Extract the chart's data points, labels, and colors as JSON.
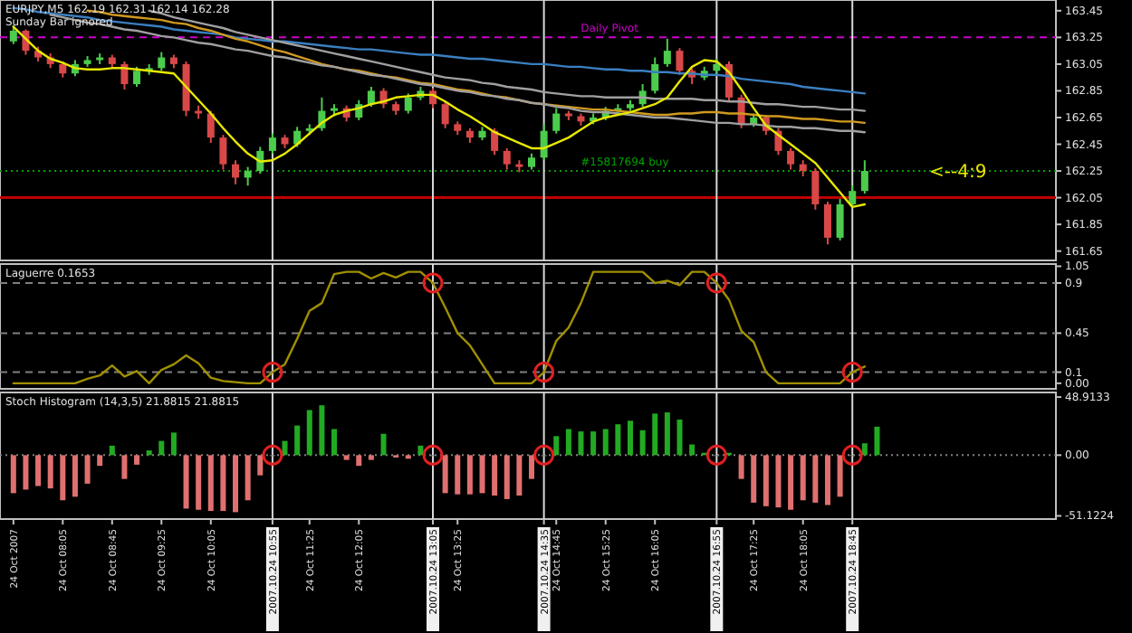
{
  "chart_data": [
    {
      "type": "candlestick",
      "title": "EURJPY,M5  162.19 162.31 162.14 162.28",
      "subtitle": "Sunday Bar ignored",
      "tick_labels": "y",
      "ylim": [
        161.58,
        163.53
      ],
      "yticks": [
        163.45,
        163.25,
        163.05,
        162.85,
        162.65,
        162.45,
        162.25,
        162.05,
        161.85,
        161.65
      ],
      "categories": [
        "24 Oct 2007",
        null,
        null,
        null,
        "24 Oct 08:05",
        null,
        null,
        null,
        "24 Oct 08:45",
        null,
        null,
        null,
        "24 Oct 09:25",
        null,
        null,
        null,
        "24 Oct 10:05",
        null,
        null,
        null,
        null,
        "2007.10.24 10:55",
        null,
        null,
        "24 Oct 11:25",
        null,
        null,
        null,
        "24 Oct 12:05",
        null,
        null,
        null,
        null,
        null,
        "2007.10.24 13:05",
        null,
        "24 Oct 13:25",
        null,
        null,
        null,
        null,
        null,
        null,
        "2007.10.24 14:35",
        "24 Oct 14:45",
        null,
        null,
        null,
        "24 Oct 15:25",
        null,
        null,
        null,
        "24 Oct 16:05",
        null,
        null,
        null,
        null,
        "2007.10.24 16:55",
        null,
        null,
        "24 Oct 17:25",
        null,
        null,
        null,
        "24 Oct 18:05",
        null,
        null,
        null,
        "2007.10.24 18:45",
        null,
        null,
        null,
        null,
        null,
        null,
        null,
        null,
        null,
        null,
        null,
        null,
        null,
        null,
        null,
        null
      ],
      "series": [
        {
          "ohlc": [
            [
              163.22,
              163.34,
              163.2,
              163.3
            ],
            [
              163.3,
              163.31,
              163.12,
              163.15
            ],
            [
              163.15,
              163.18,
              163.07,
              163.1
            ],
            [
              163.1,
              163.13,
              163.02,
              163.05
            ],
            [
              163.05,
              163.07,
              162.95,
              162.98
            ],
            [
              162.98,
              163.08,
              162.96,
              163.05
            ],
            [
              163.05,
              163.11,
              163.03,
              163.08
            ],
            [
              163.08,
              163.13,
              163.05,
              163.1
            ],
            [
              163.1,
              163.12,
              163.02,
              163.05
            ],
            [
              163.05,
              163.07,
              162.86,
              162.9
            ],
            [
              162.9,
              163.03,
              162.88,
              163.0
            ],
            [
              163.0,
              163.05,
              162.97,
              163.02
            ],
            [
              163.02,
              163.14,
              163.0,
              163.1
            ],
            [
              163.1,
              163.12,
              163.02,
              163.05
            ],
            [
              163.05,
              163.07,
              162.66,
              162.7
            ],
            [
              162.7,
              162.74,
              162.64,
              162.68
            ],
            [
              162.68,
              162.7,
              162.46,
              162.5
            ],
            [
              162.5,
              162.52,
              162.26,
              162.3
            ],
            [
              162.3,
              162.33,
              162.15,
              162.2
            ],
            [
              162.2,
              162.28,
              162.14,
              162.25
            ],
            [
              162.25,
              162.43,
              162.23,
              162.4
            ],
            [
              162.4,
              162.53,
              162.38,
              162.5
            ],
            [
              162.5,
              162.52,
              162.42,
              162.45
            ],
            [
              162.45,
              162.58,
              162.43,
              162.55
            ],
            [
              162.55,
              162.6,
              162.52,
              162.57
            ],
            [
              162.57,
              162.8,
              162.55,
              162.7
            ],
            [
              162.7,
              162.75,
              162.66,
              162.72
            ],
            [
              162.72,
              162.74,
              162.62,
              162.65
            ],
            [
              162.65,
              162.78,
              162.63,
              162.75
            ],
            [
              162.75,
              162.88,
              162.73,
              162.85
            ],
            [
              162.85,
              162.87,
              162.72,
              162.75
            ],
            [
              162.75,
              162.77,
              162.67,
              162.7
            ],
            [
              162.7,
              162.83,
              162.68,
              162.8
            ],
            [
              162.8,
              162.88,
              162.78,
              162.85
            ],
            [
              162.85,
              162.87,
              162.72,
              162.75
            ],
            [
              162.75,
              162.77,
              162.57,
              162.6
            ],
            [
              162.6,
              162.62,
              162.52,
              162.55
            ],
            [
              162.55,
              162.57,
              162.46,
              162.5
            ],
            [
              162.5,
              162.58,
              162.48,
              162.55
            ],
            [
              162.55,
              162.57,
              162.37,
              162.4
            ],
            [
              162.4,
              162.42,
              162.26,
              162.3
            ],
            [
              162.3,
              162.33,
              162.24,
              162.28
            ],
            [
              162.28,
              162.38,
              162.26,
              162.35
            ],
            [
              162.35,
              162.6,
              162.33,
              162.55
            ],
            [
              162.55,
              162.72,
              162.53,
              162.68
            ],
            [
              162.68,
              162.7,
              162.63,
              162.66
            ],
            [
              162.66,
              162.68,
              162.59,
              162.62
            ],
            [
              162.62,
              162.68,
              162.6,
              162.65
            ],
            [
              162.65,
              162.73,
              162.63,
              162.7
            ],
            [
              162.7,
              162.75,
              162.68,
              162.72
            ],
            [
              162.72,
              162.78,
              162.7,
              162.75
            ],
            [
              162.75,
              162.9,
              162.73,
              162.85
            ],
            [
              162.85,
              163.1,
              162.83,
              163.05
            ],
            [
              163.05,
              163.24,
              163.03,
              163.15
            ],
            [
              163.15,
              163.17,
              162.97,
              163.0
            ],
            [
              163.0,
              163.02,
              162.9,
              162.95
            ],
            [
              162.95,
              163.03,
              162.93,
              163.0
            ],
            [
              163.0,
              163.09,
              162.98,
              163.05
            ],
            [
              163.05,
              163.07,
              162.77,
              162.8
            ],
            [
              162.8,
              162.82,
              162.57,
              162.6
            ],
            [
              162.6,
              162.68,
              162.58,
              162.65
            ],
            [
              162.65,
              162.67,
              162.52,
              162.55
            ],
            [
              162.55,
              162.57,
              162.37,
              162.4
            ],
            [
              162.4,
              162.42,
              162.26,
              162.3
            ],
            [
              162.3,
              162.33,
              162.21,
              162.25
            ],
            [
              162.25,
              162.27,
              161.96,
              162.0
            ],
            [
              162.0,
              162.02,
              161.7,
              161.75
            ],
            [
              161.75,
              162.04,
              161.73,
              162.0
            ],
            [
              162.0,
              162.14,
              161.98,
              162.1
            ],
            [
              162.1,
              162.33,
              162.08,
              162.25
            ],
            null,
            null,
            null,
            null,
            null,
            null,
            null,
            null,
            null,
            null,
            null,
            null,
            null,
            null,
            null
          ],
          "colors": [
            "#4ccc4c",
            "#d84848",
            "#d84848",
            "#d84848",
            "#d84848",
            "#4ccc4c",
            "#4ccc4c",
            "#4ccc4c",
            "#d84848",
            "#d84848",
            "#4ccc4c",
            "#4ccc4c",
            "#4ccc4c",
            "#d84848",
            "#d84848",
            "#d84848",
            "#d84848",
            "#d84848",
            "#d84848",
            "#4ccc4c",
            "#4ccc4c",
            "#4ccc4c",
            "#d84848",
            "#4ccc4c",
            "#4ccc4c",
            "#4ccc4c",
            "#4ccc4c",
            "#d84848",
            "#4ccc4c",
            "#4ccc4c",
            "#d84848",
            "#d84848",
            "#4ccc4c",
            "#4ccc4c",
            "#d84848",
            "#d84848",
            "#d84848",
            "#d84848",
            "#4ccc4c",
            "#d84848",
            "#d84848",
            "#d84848",
            "#4ccc4c",
            "#4ccc4c",
            "#4ccc4c",
            "#d84848",
            "#d84848",
            "#4ccc4c",
            "#4ccc4c",
            "#4ccc4c",
            "#4ccc4c",
            "#4ccc4c",
            "#4ccc4c",
            "#4ccc4c",
            "#d84848",
            "#d84848",
            "#4ccc4c",
            "#4ccc4c",
            "#d84848",
            "#d84848",
            "#4ccc4c",
            "#d84848",
            "#d84848",
            "#d84848",
            "#d84848",
            "#d84848",
            "#d84848",
            "#4ccc4c",
            "#4ccc4c",
            "#4ccc4c",
            null,
            null,
            null,
            null,
            null,
            null,
            null,
            null,
            null,
            null,
            null,
            null,
            null,
            null,
            null
          ]
        },
        {
          "type": "line",
          "color": "#3a7fc0",
          "values": [
            163.47,
            163.46,
            163.44,
            163.43,
            163.42,
            163.41,
            163.4,
            163.38,
            163.37,
            163.36,
            163.35,
            163.34,
            163.33,
            163.31,
            163.3,
            163.29,
            163.28,
            163.27,
            163.25,
            163.24,
            163.23,
            163.22,
            163.22,
            163.21,
            163.2,
            163.19,
            163.18,
            163.17,
            163.16,
            163.16,
            163.15,
            163.14,
            163.13,
            163.12,
            163.12,
            163.11,
            163.1,
            163.09,
            163.09,
            163.08,
            163.07,
            163.06,
            163.05,
            163.05,
            163.04,
            163.03,
            163.03,
            163.02,
            163.01,
            163.01,
            163.0,
            163.0,
            162.99,
            162.99,
            162.98,
            162.98,
            162.97,
            162.97,
            162.96,
            162.94,
            162.93,
            162.92,
            162.91,
            162.9,
            162.88,
            162.87,
            162.86,
            162.85,
            162.84,
            162.83,
            null,
            null,
            null,
            null,
            null,
            null,
            null,
            null,
            null,
            null,
            null,
            null,
            null,
            null,
            null
          ]
        },
        {
          "type": "line",
          "color": "#a0a0a0",
          "values": [
            null,
            null,
            null,
            null,
            null,
            null,
            null,
            null,
            null,
            null,
            null,
            163.45,
            163.43,
            163.4,
            163.38,
            163.36,
            163.34,
            163.32,
            163.29,
            163.27,
            163.25,
            163.23,
            163.21,
            163.19,
            163.17,
            163.15,
            163.13,
            163.11,
            163.09,
            163.07,
            163.05,
            163.03,
            163.01,
            162.99,
            162.97,
            162.95,
            162.94,
            162.93,
            162.91,
            162.9,
            162.88,
            162.87,
            162.86,
            162.84,
            162.83,
            162.82,
            162.81,
            162.81,
            162.8,
            162.8,
            162.8,
            162.8,
            162.79,
            162.79,
            162.79,
            162.79,
            162.78,
            162.78,
            162.77,
            162.77,
            162.76,
            162.75,
            162.75,
            162.74,
            162.73,
            162.73,
            162.72,
            162.71,
            162.71,
            162.7,
            null,
            null,
            null,
            null,
            null,
            null,
            null,
            null,
            null,
            null,
            null,
            null,
            null,
            null,
            null
          ]
        },
        {
          "type": "line",
          "color": "#d09a20",
          "values": [
            null,
            null,
            null,
            null,
            null,
            null,
            163.45,
            163.44,
            163.42,
            163.41,
            163.4,
            163.39,
            163.38,
            163.36,
            163.35,
            163.32,
            163.3,
            163.27,
            163.24,
            163.22,
            163.19,
            163.16,
            163.14,
            163.11,
            163.08,
            163.05,
            163.03,
            163.01,
            163.0,
            162.98,
            162.96,
            162.95,
            162.93,
            162.91,
            162.9,
            162.88,
            162.86,
            162.85,
            162.83,
            162.81,
            162.8,
            162.78,
            162.76,
            162.75,
            162.74,
            162.73,
            162.72,
            162.71,
            162.71,
            162.7,
            162.69,
            162.68,
            162.67,
            162.67,
            162.68,
            162.68,
            162.69,
            162.69,
            162.68,
            162.68,
            162.67,
            162.66,
            162.66,
            162.65,
            162.64,
            162.64,
            162.63,
            162.62,
            162.62,
            162.61,
            null,
            null,
            null,
            null,
            null,
            null,
            null,
            null,
            null,
            null,
            null,
            null,
            null,
            null,
            null
          ]
        },
        {
          "type": "line",
          "color": "#a0a0a0",
          "values": [
            null,
            null,
            null,
            163.42,
            163.4,
            163.38,
            163.36,
            163.35,
            163.33,
            163.31,
            163.3,
            163.28,
            163.26,
            163.25,
            163.23,
            163.21,
            163.2,
            163.18,
            163.16,
            163.15,
            163.13,
            163.11,
            163.1,
            163.08,
            163.06,
            163.04,
            163.03,
            163.01,
            162.99,
            162.97,
            162.96,
            162.94,
            162.92,
            162.9,
            162.89,
            162.87,
            162.85,
            162.84,
            162.82,
            162.81,
            162.79,
            162.78,
            162.76,
            162.75,
            162.73,
            162.72,
            162.7,
            162.69,
            162.69,
            162.68,
            162.67,
            162.66,
            162.65,
            162.65,
            162.64,
            162.63,
            162.62,
            162.61,
            162.61,
            162.6,
            162.6,
            162.59,
            162.58,
            162.58,
            162.57,
            162.57,
            162.56,
            162.55,
            162.55,
            162.54,
            null,
            null,
            null,
            null,
            null,
            null,
            null,
            null,
            null,
            null,
            null,
            null,
            null,
            null,
            null
          ]
        },
        {
          "type": "line",
          "color": "#e8e800",
          "values": [
            163.33,
            163.24,
            163.15,
            163.09,
            163.06,
            163.02,
            163.01,
            163.01,
            163.02,
            163.02,
            163.01,
            163.0,
            162.99,
            162.98,
            162.88,
            162.78,
            162.68,
            162.57,
            162.47,
            162.38,
            162.32,
            162.33,
            162.38,
            162.45,
            162.53,
            162.61,
            162.67,
            162.7,
            162.72,
            162.75,
            162.77,
            162.8,
            162.81,
            162.82,
            162.82,
            162.77,
            162.71,
            162.66,
            162.6,
            162.54,
            162.5,
            162.46,
            162.42,
            162.42,
            162.46,
            162.5,
            162.56,
            162.62,
            162.65,
            162.67,
            162.69,
            162.72,
            162.75,
            162.8,
            162.92,
            163.03,
            163.08,
            163.07,
            162.99,
            162.86,
            162.72,
            162.59,
            162.52,
            162.45,
            162.38,
            162.31,
            162.2,
            162.09,
            161.98,
            162.0,
            null,
            null,
            null,
            null,
            null,
            null,
            null,
            null,
            null,
            null,
            null,
            null,
            null,
            null,
            null
          ]
        }
      ],
      "ref_lines": [
        {
          "axis": "y",
          "value": 163.25,
          "label": "Daily Pivot",
          "color": "#cc00cc",
          "line_style": "dashed"
        },
        {
          "axis": "y",
          "value": 162.25,
          "label": "#15817694 buy",
          "color": "#00a000",
          "line_style": "dotted"
        },
        {
          "axis": "y",
          "value": 162.05,
          "color": "#c00000",
          "line_style": "solid"
        },
        {
          "axis": "x",
          "value": "2007.10.24 10:55",
          "color": "#d8d8d8"
        },
        {
          "axis": "x",
          "value": "2007.10.24 13:05",
          "color": "#d8d8d8"
        },
        {
          "axis": "x",
          "value": "2007.10.24 14:35",
          "color": "#d8d8d8"
        },
        {
          "axis": "x",
          "value": "2007.10.24 16:55",
          "color": "#d8d8d8"
        },
        {
          "axis": "x",
          "value": "2007.10.24 18:45",
          "color": "#d8d8d8"
        }
      ],
      "annotations": [
        {
          "text": "<--4:9",
          "y": 162.2
        }
      ]
    },
    {
      "type": "line",
      "title": "Laguerre 0.1653",
      "tick_labels": "y",
      "ylim": [
        -0.05,
        1.07
      ],
      "yticks": [
        1.05,
        0.9,
        0.45,
        0.1,
        {
          "value": 0,
          "label": "0.00"
        }
      ],
      "categories": [
        "24 Oct 2007",
        null,
        null,
        null,
        "24 Oct 08:05",
        null,
        null,
        null,
        "24 Oct 08:45",
        null,
        null,
        null,
        "24 Oct 09:25",
        null,
        null,
        null,
        "24 Oct 10:05",
        null,
        null,
        null,
        null,
        "2007.10.24 10:55",
        null,
        null,
        "24 Oct 11:25",
        null,
        null,
        null,
        "24 Oct 12:05",
        null,
        null,
        null,
        null,
        null,
        "2007.10.24 13:05",
        null,
        "24 Oct 13:25",
        null,
        null,
        null,
        null,
        null,
        null,
        "2007.10.24 14:35",
        "24 Oct 14:45",
        null,
        null,
        null,
        "24 Oct 15:25",
        null,
        null,
        null,
        "24 Oct 16:05",
        null,
        null,
        null,
        null,
        "2007.10.24 16:55",
        null,
        null,
        "24 Oct 17:25",
        null,
        null,
        null,
        "24 Oct 18:05",
        null,
        null,
        null,
        "2007.10.24 18:45",
        null,
        null,
        null,
        null,
        null,
        null,
        null,
        null,
        null,
        null,
        null,
        null,
        null,
        null,
        null,
        null
      ],
      "series": [
        {
          "color": "#a09000",
          "values": [
            0,
            0,
            0,
            0,
            0,
            0,
            0.04,
            0.07,
            0.16,
            0.06,
            0.11,
            0,
            0.12,
            0.17,
            0.25,
            0.18,
            0.05,
            0.02,
            0.01,
            0,
            0,
            0.1,
            0.17,
            0.4,
            0.65,
            0.72,
            0.98,
            1,
            1,
            0.94,
            0.99,
            0.95,
            1,
            1,
            0.9,
            0.68,
            0.45,
            0.34,
            0.17,
            0,
            0,
            0,
            0,
            0.1,
            0.38,
            0.5,
            0.72,
            1,
            1,
            1,
            1,
            1,
            0.9,
            0.92,
            0.88,
            1,
            1,
            0.9,
            0.75,
            0.47,
            0.37,
            0.1,
            0,
            0,
            0,
            0,
            0,
            0,
            0.1,
            0.15,
            null,
            null,
            null,
            null,
            null,
            null,
            null,
            null,
            null,
            null,
            null,
            null,
            null,
            null,
            null
          ]
        },
        {
          "type": "scatter",
          "marker": "circle",
          "color": "#e02020",
          "values": [
            null,
            null,
            null,
            null,
            null,
            null,
            null,
            null,
            null,
            null,
            null,
            null,
            null,
            null,
            null,
            null,
            null,
            null,
            null,
            null,
            null,
            0.1,
            null,
            null,
            null,
            null,
            null,
            null,
            null,
            null,
            null,
            null,
            null,
            null,
            0.9,
            null,
            null,
            null,
            null,
            null,
            null,
            null,
            null,
            0.1,
            null,
            null,
            null,
            null,
            null,
            null,
            null,
            null,
            null,
            null,
            null,
            null,
            null,
            0.9,
            null,
            null,
            null,
            null,
            null,
            null,
            null,
            null,
            null,
            null,
            0.1,
            null,
            null,
            null,
            null,
            null,
            null,
            null,
            null,
            null,
            null,
            null,
            null,
            null,
            null,
            null,
            null
          ]
        }
      ],
      "ref_lines": [
        {
          "axis": "y",
          "value": 0.9,
          "color": "#808080",
          "line_style": "dashed"
        },
        {
          "axis": "y",
          "value": 0.45,
          "color": "#808080",
          "line_style": "dashed"
        },
        {
          "axis": "y",
          "value": 0.1,
          "color": "#808080",
          "line_style": "dashed"
        },
        {
          "axis": "x",
          "value": "2007.10.24 10:55",
          "color": "#d8d8d8"
        },
        {
          "axis": "x",
          "value": "2007.10.24 13:05",
          "color": "#d8d8d8"
        },
        {
          "axis": "x",
          "value": "2007.10.24 14:35",
          "color": "#d8d8d8"
        },
        {
          "axis": "x",
          "value": "2007.10.24 16:55",
          "color": "#d8d8d8"
        },
        {
          "axis": "x",
          "value": "2007.10.24 18:45",
          "color": "#d8d8d8"
        }
      ]
    },
    {
      "type": "bar",
      "title": "Stoch Histogram (14,3,5) 21.8815 21.8815",
      "ylim": [
        -53.8,
        52.8
      ],
      "yticks": [
        {
          "value": 48.9133,
          "label": "48.9133"
        },
        {
          "value": 0,
          "label": "0.00"
        },
        {
          "value": -51.1224,
          "label": "-51.1224"
        }
      ],
      "categories": [
        "24 Oct 2007",
        null,
        null,
        null,
        "24 Oct 08:05",
        null,
        null,
        null,
        "24 Oct 08:45",
        null,
        null,
        null,
        "24 Oct 09:25",
        null,
        null,
        null,
        "24 Oct 10:05",
        null,
        null,
        null,
        null,
        "2007.10.24 10:55",
        null,
        null,
        "24 Oct 11:25",
        null,
        null,
        null,
        "24 Oct 12:05",
        null,
        null,
        null,
        null,
        null,
        "2007.10.24 13:05",
        null,
        "24 Oct 13:25",
        null,
        null,
        null,
        null,
        null,
        null,
        "2007.10.24 14:35",
        "24 Oct 14:45",
        null,
        null,
        null,
        "24 Oct 15:25",
        null,
        null,
        null,
        "24 Oct 16:05",
        null,
        null,
        null,
        null,
        "2007.10.24 16:55",
        null,
        null,
        "24 Oct 17:25",
        null,
        null,
        null,
        "24 Oct 18:05",
        null,
        null,
        null,
        "2007.10.24 18:45",
        null,
        null,
        null,
        null,
        null,
        null,
        null,
        null,
        null,
        null,
        null,
        null,
        null,
        null,
        null,
        null
      ],
      "series": [
        {
          "values": [
            -32,
            -29,
            -26,
            -28,
            -38,
            -35,
            -24,
            -9,
            8,
            -20,
            -8,
            4,
            12,
            19,
            -45,
            -46,
            -47,
            -47,
            -48,
            -38,
            -17,
            0,
            12,
            25,
            38,
            42,
            22,
            -4,
            -9,
            -4,
            18,
            -2,
            -3,
            8,
            0,
            -32,
            -33,
            -33,
            -32,
            -34,
            -37,
            -34,
            -20,
            0,
            16,
            22,
            20,
            20,
            22,
            26,
            29,
            21,
            35,
            36,
            30,
            9,
            2,
            0,
            2,
            -20,
            -40,
            -43,
            -44,
            -46,
            -38,
            -40,
            -42,
            -35,
            0,
            10,
            24,
            null,
            null,
            null,
            null,
            null,
            null,
            null,
            null,
            null,
            null,
            null,
            null,
            null,
            null
          ],
          "colors": [
            "#e07070",
            "#e07070",
            "#e07070",
            "#e07070",
            "#e07070",
            "#e07070",
            "#e07070",
            "#e07070",
            "#22aa22",
            "#e07070",
            "#e07070",
            "#22aa22",
            "#22aa22",
            "#22aa22",
            "#e07070",
            "#e07070",
            "#e07070",
            "#e07070",
            "#e07070",
            "#e07070",
            "#e07070",
            "#808080",
            "#22aa22",
            "#22aa22",
            "#22aa22",
            "#22aa22",
            "#22aa22",
            "#e07070",
            "#e07070",
            "#e07070",
            "#22aa22",
            "#e07070",
            "#e07070",
            "#22aa22",
            "#808080",
            "#e07070",
            "#e07070",
            "#e07070",
            "#e07070",
            "#e07070",
            "#e07070",
            "#e07070",
            "#e07070",
            "#808080",
            "#22aa22",
            "#22aa22",
            "#22aa22",
            "#22aa22",
            "#22aa22",
            "#22aa22",
            "#22aa22",
            "#22aa22",
            "#22aa22",
            "#22aa22",
            "#22aa22",
            "#22aa22",
            "#22aa22",
            "#808080",
            "#22aa22",
            "#e07070",
            "#e07070",
            "#e07070",
            "#e07070",
            "#e07070",
            "#e07070",
            "#e07070",
            "#e07070",
            "#e07070",
            "#808080",
            "#22aa22",
            "#22aa22",
            null,
            null,
            null,
            null,
            null,
            null,
            null,
            null,
            null,
            null,
            null,
            null,
            null,
            null
          ]
        },
        {
          "type": "scatter",
          "marker": "circle",
          "color": "#e02020",
          "values": [
            null,
            null,
            null,
            null,
            null,
            null,
            null,
            null,
            null,
            null,
            null,
            null,
            null,
            null,
            null,
            null,
            null,
            null,
            null,
            null,
            null,
            0,
            null,
            null,
            null,
            null,
            null,
            null,
            null,
            null,
            null,
            null,
            null,
            null,
            0,
            null,
            null,
            null,
            null,
            null,
            null,
            null,
            null,
            0,
            null,
            null,
            null,
            null,
            null,
            null,
            null,
            null,
            null,
            null,
            null,
            null,
            null,
            0,
            null,
            null,
            null,
            null,
            null,
            null,
            null,
            null,
            null,
            null,
            0,
            null,
            null,
            null,
            null,
            null,
            null,
            null,
            null,
            null,
            null,
            null,
            null,
            null,
            null,
            null,
            null
          ]
        }
      ],
      "ref_lines": [
        {
          "axis": "y",
          "value": 0,
          "color": "#808080",
          "line_style": "dotted"
        },
        {
          "axis": "x",
          "value": "2007.10.24 10:55",
          "color": "#d8d8d8"
        },
        {
          "axis": "x",
          "value": "2007.10.24 13:05",
          "color": "#d8d8d8"
        },
        {
          "axis": "x",
          "value": "2007.10.24 14:35",
          "color": "#d8d8d8"
        },
        {
          "axis": "x",
          "value": "2007.10.24 16:55",
          "color": "#d8d8d8"
        },
        {
          "axis": "x",
          "value": "2007.10.24 18:45",
          "color": "#d8d8d8"
        }
      ]
    }
  ]
}
